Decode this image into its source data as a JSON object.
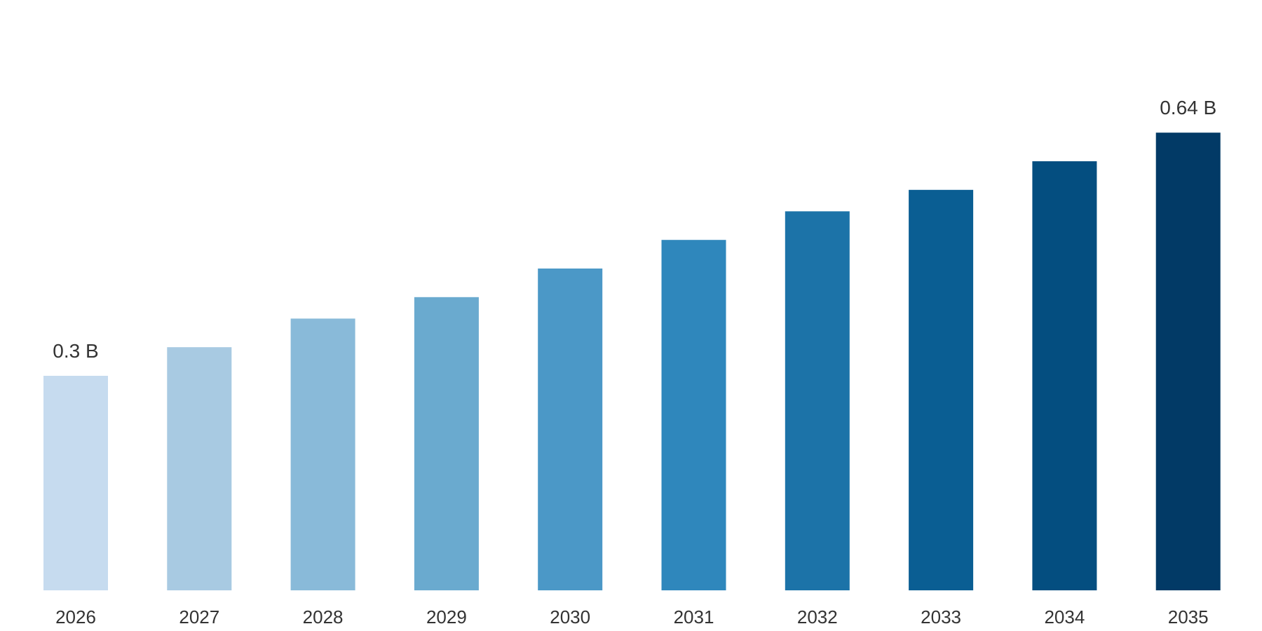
{
  "chart_data": {
    "type": "bar",
    "title": "",
    "xlabel": "",
    "ylabel": "",
    "categories": [
      "2026",
      "2027",
      "2028",
      "2029",
      "2030",
      "2031",
      "2032",
      "2033",
      "2034",
      "2035"
    ],
    "values": [
      0.3,
      0.34,
      0.38,
      0.41,
      0.45,
      0.49,
      0.53,
      0.56,
      0.6,
      0.64
    ],
    "ylim": [
      0,
      0.7
    ],
    "grid": false,
    "legend": "none",
    "data_labels": [
      {
        "index": 0,
        "text": "0.3 B"
      },
      {
        "index": 9,
        "text": "0.64 B"
      }
    ],
    "colors": [
      "#c6dbef",
      "#a8cae2",
      "#89bad9",
      "#6aaacf",
      "#4b98c7",
      "#2f87bc",
      "#1c73a8",
      "#0a5e93",
      "#044e80",
      "#023a66"
    ]
  }
}
